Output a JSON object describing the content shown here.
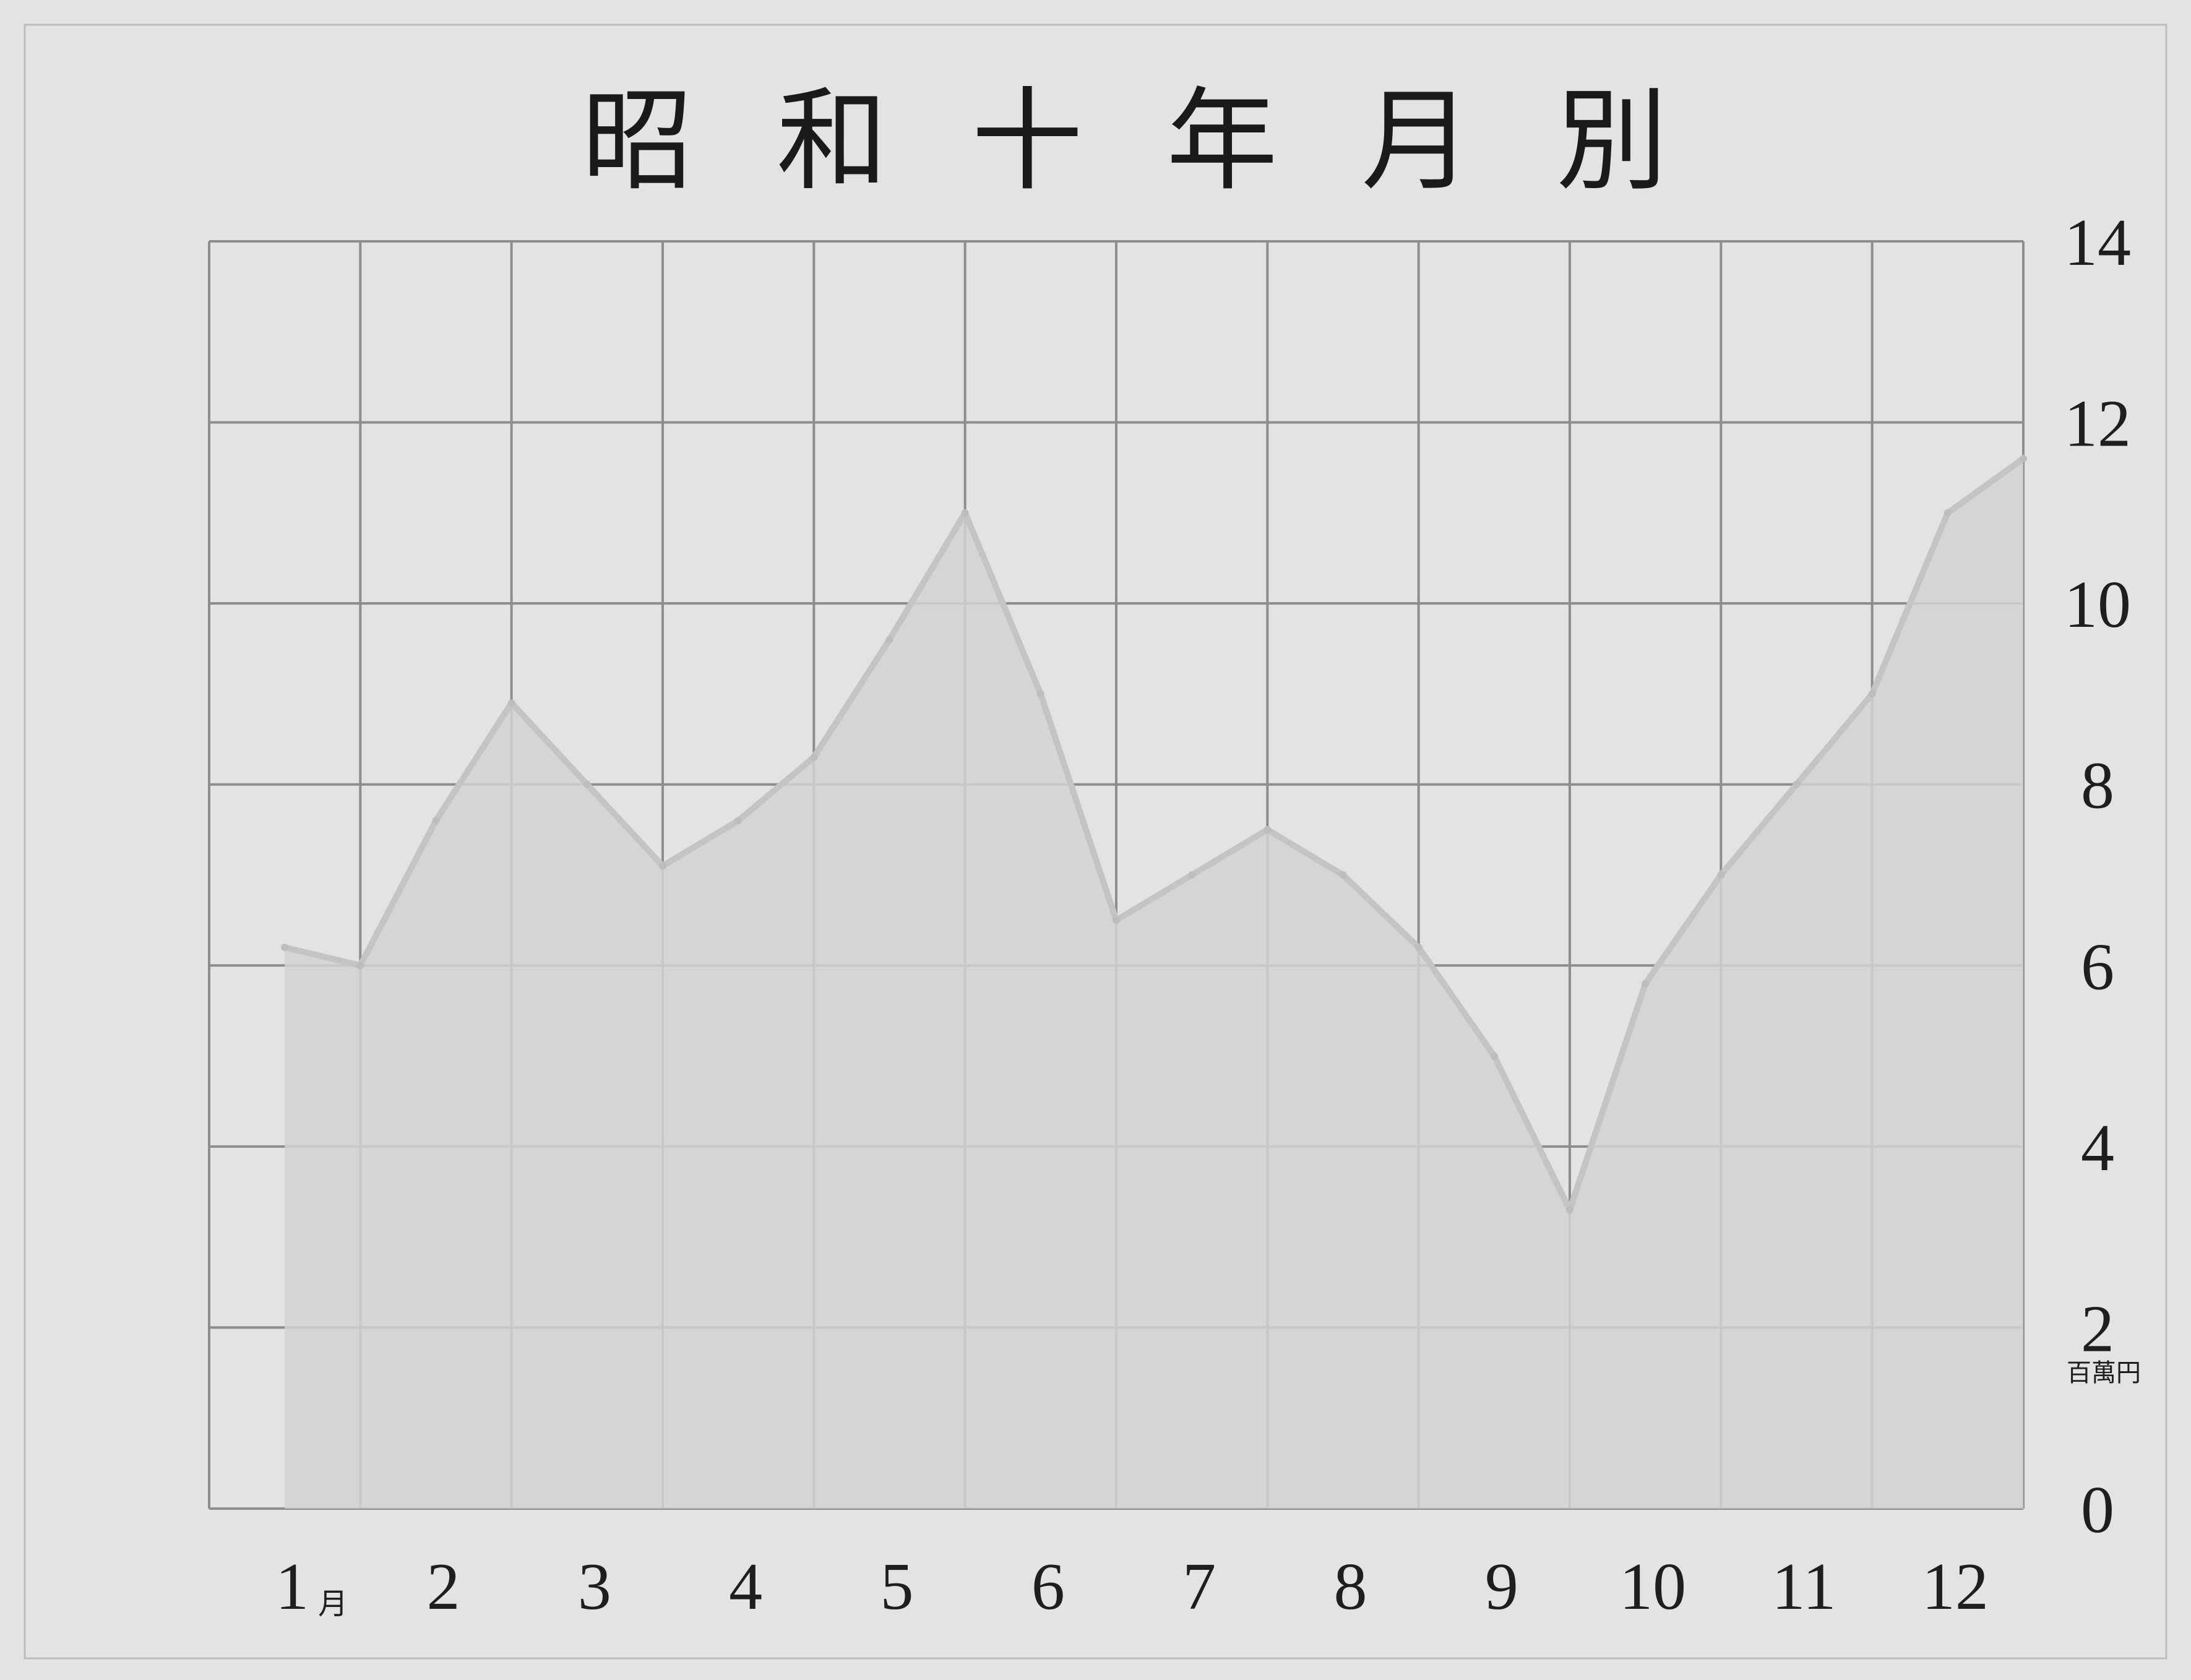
{
  "chart_data": {
    "type": "area",
    "title_chars": [
      "昭",
      "和",
      "十",
      "年",
      "月",
      "別"
    ],
    "x_tick_labels": [
      "1",
      "2",
      "3",
      "4",
      "5",
      "6",
      "7",
      "8",
      "9",
      "10",
      "11",
      "12"
    ],
    "x_first_suffix": "月",
    "y_tick_labels": [
      "0",
      "2",
      "4",
      "6",
      "8",
      "10",
      "12",
      "14"
    ],
    "y_unit": "百萬円",
    "ylim": [
      0,
      14
    ],
    "grid": true,
    "y_axis_side": "right",
    "series": [
      {
        "x": [
          0.5,
          1.0,
          1.5,
          2.0,
          2.5,
          3.0,
          3.5,
          4.0,
          4.5,
          5.0,
          5.5,
          6.0,
          6.5,
          7.0,
          7.5,
          8.0,
          8.5,
          9.0,
          9.5,
          10.0,
          10.5,
          11.0,
          11.5,
          12.0
        ],
        "values": [
          6.2,
          6.0,
          7.6,
          8.9,
          8.0,
          7.1,
          7.6,
          8.3,
          9.6,
          11.0,
          9.0,
          6.5,
          7.0,
          7.5,
          7.0,
          6.2,
          5.0,
          3.3,
          5.8,
          7.0,
          8.0,
          9.0,
          11.0,
          11.6
        ]
      }
    ]
  }
}
